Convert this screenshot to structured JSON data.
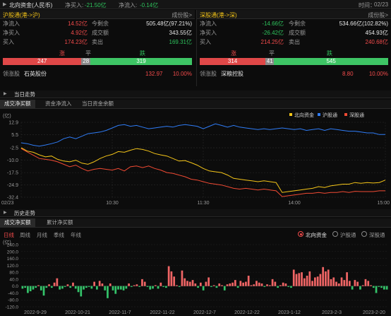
{
  "header": {
    "title": "北向资金(人民币)",
    "net_buy_label": "净买入:",
    "net_buy_value": "-21.50亿",
    "net_inflow_label": "净流入:",
    "net_inflow_value": "-0.14亿",
    "time_label": "时间：",
    "time_value": "02/23"
  },
  "sh": {
    "title": "沪股通(港->沪)",
    "components": "成份股>",
    "inflow_label": "净流入",
    "inflow_value": "14.52亿",
    "remain_label": "今剩余",
    "remain_value": "505.48亿(97.21%)",
    "netbuy_label": "净买入",
    "netbuy_value": "4.92亿",
    "turnover_label": "成交额",
    "turnover_value": "343.55亿",
    "buy_label": "买入",
    "buy_value": "174.23亿",
    "sell_label": "卖出",
    "sell_value": "169.31亿",
    "up_label": "涨",
    "flat_label": "平",
    "down_label": "跌",
    "up_count": 247,
    "flat_count": 28,
    "down_count": 319,
    "leader_label": "领涨股",
    "leader_name": "石英股份",
    "leader_price": "132.97",
    "leader_pct": "10.00%"
  },
  "sz": {
    "title": "深股通(港->深)",
    "components": "成份股>",
    "inflow_label": "净流入",
    "inflow_value": "-14.66亿",
    "remain_label": "今剩余",
    "remain_value": "534.66亿(102.82%)",
    "netbuy_label": "净买入",
    "netbuy_value": "-26.42亿",
    "turnover_label": "成交额",
    "turnover_value": "454.93亿",
    "buy_label": "买入",
    "buy_value": "214.25亿",
    "sell_label": "卖出",
    "sell_value": "240.68亿",
    "up_label": "涨",
    "flat_label": "平",
    "down_label": "跌",
    "up_count": 314,
    "flat_count": 41,
    "down_count": 545,
    "leader_label": "领涨股",
    "leader_name": "深粮控股",
    "leader_price": "8.80",
    "leader_pct": "10.00%"
  },
  "intraday": {
    "section_title": "当日走势",
    "tabs": [
      "成交净买额",
      "资金净流入",
      "当日资金余额"
    ],
    "unit_label": "(亿)",
    "colors": {
      "north": "#f5c518",
      "sh": "#2f7cf6",
      "sz": "#f04a33"
    }
  },
  "history": {
    "section_title": "历史走势",
    "tabs": [
      "成交净买额",
      "累计净买额"
    ],
    "periods": [
      "日线",
      "周线",
      "月线",
      "季线",
      "年线"
    ],
    "radios": [
      "北向资金",
      "沪股通",
      "深股通"
    ],
    "unit_label": "(亿)"
  },
  "chart_data": [
    {
      "type": "line",
      "x_ticks": [
        "02/23",
        "10:30",
        "11:30",
        "14:00",
        "15:00"
      ],
      "y_ticks": [
        "12.9",
        "5.5",
        "-2.5",
        "-10.0",
        "-17.5",
        "-24.9",
        "-32.4"
      ],
      "ylim": [
        -32.4,
        12.9
      ],
      "legend_position": "top-right",
      "series": [
        {
          "name": "北向资金",
          "color": "#f5c518",
          "values": [
            -2.5,
            -4.5,
            -5.2,
            -6.8,
            -8.0,
            -7.5,
            -9.5,
            -10.5,
            -11.0,
            -10.0,
            -11.8,
            -12.5,
            -11.0,
            -9.0,
            -7.5,
            -6.5,
            -4.8,
            -5.2,
            -4.0,
            -3.0,
            -3.5,
            -4.5,
            -6.0,
            -6.8,
            -7.5,
            -9.0,
            -10.5,
            -10.2,
            -11.5,
            -13.0,
            -15.0,
            -16.5,
            -17.0,
            -17.5,
            -19.0,
            -21.0,
            -21.5,
            -22.0,
            -22.5,
            -23.0,
            -22.5,
            -23.0,
            -23.5,
            -29.5,
            -29.0,
            -28.5,
            -28.0,
            -27.5,
            -27.0,
            -26.0,
            -26.5,
            -25.5,
            -25.0,
            -24.5,
            -24.5,
            -23.5,
            -24.0,
            -23.5,
            -23.8,
            -23.5,
            -22.0
          ]
        },
        {
          "name": "沪股通",
          "color": "#2f7cf6",
          "values": [
            0.5,
            0.0,
            -1.0,
            -1.5,
            -0.8,
            0.0,
            1.0,
            3.0,
            4.0,
            3.0,
            4.5,
            6.0,
            6.5,
            7.0,
            8.0,
            9.5,
            11.0,
            11.5,
            10.5,
            11.0,
            10.0,
            9.0,
            9.5,
            10.0,
            10.5,
            10.0,
            11.0,
            11.5,
            11.0,
            10.5,
            9.0,
            10.5,
            12.0,
            11.0,
            10.0,
            11.0,
            10.0,
            9.5,
            9.0,
            8.5,
            9.0,
            8.5,
            9.0,
            9.5,
            9.0,
            8.5,
            9.0,
            8.0,
            8.5,
            9.0,
            8.0,
            9.0,
            8.5,
            8.0,
            7.5,
            7.5,
            7.0,
            6.5,
            6.5,
            5.5,
            5.5
          ]
        },
        {
          "name": "深股通",
          "color": "#f04a33",
          "values": [
            -3.0,
            -5.0,
            -7.0,
            -9.0,
            -9.5,
            -10.0,
            -11.0,
            -12.5,
            -14.0,
            -13.0,
            -15.0,
            -16.5,
            -15.5,
            -15.0,
            -15.5,
            -16.0,
            -15.0,
            -16.5,
            -14.0,
            -13.5,
            -14.5,
            -13.5,
            -15.0,
            -16.0,
            -17.5,
            -18.0,
            -19.0,
            -20.0,
            -21.5,
            -22.0,
            -23.0,
            -24.0,
            -24.5,
            -25.0,
            -26.0,
            -27.0,
            -27.5,
            -27.0,
            -27.5,
            -28.0,
            -27.5,
            -28.0,
            -28.5,
            -32.0,
            -31.5,
            -31.0,
            -30.5,
            -30.0,
            -30.0,
            -29.5,
            -30.0,
            -29.5,
            -29.5,
            -29.0,
            -29.5,
            -28.8,
            -29.0,
            -29.0,
            -29.0,
            -28.5,
            -28.5
          ]
        }
      ]
    },
    {
      "type": "bar",
      "x_ticks": [
        "2022-9-29",
        "2022-10-21",
        "2022-11-7",
        "2022-11-22",
        "2022-12-7",
        "2022-12-22",
        "2023-1-12",
        "2023-2-3",
        "2023-2-20"
      ],
      "y_ticks": [
        "240.0",
        "200.0",
        "160.0",
        "120.0",
        "80.0",
        "40.0",
        "0.0",
        "-40.0",
        "-80.0",
        "-120.0"
      ],
      "ylim": [
        -120,
        240
      ],
      "values": [
        -15,
        -10,
        -40,
        -30,
        -20,
        -10,
        5,
        -25,
        -55,
        -10,
        10,
        -10,
        20,
        45,
        -20,
        -15,
        -5,
        10,
        -10,
        20,
        -15,
        -35,
        -60,
        -20,
        -10,
        -5,
        -15,
        25,
        -20,
        30,
        15,
        -25,
        -70,
        15,
        -25,
        -45,
        -20,
        -20,
        -25,
        -15,
        15,
        -5,
        5,
        10,
        -5,
        40,
        25,
        -5,
        -20,
        -15,
        5,
        -15,
        20,
        -5,
        -10,
        115,
        85,
        55,
        5,
        -5,
        90,
        45,
        30,
        25,
        35,
        15,
        -10,
        20,
        -25,
        25,
        50,
        -5,
        5,
        -10,
        15,
        5,
        -25,
        10,
        15,
        20,
        35,
        -10,
        30,
        20,
        25,
        60,
        5,
        10,
        30,
        20,
        15,
        -5,
        10,
        5,
        40,
        25,
        -10,
        5,
        20,
        15,
        -5,
        -10,
        95,
        70,
        75,
        80,
        45,
        60,
        85,
        30,
        50,
        55,
        70,
        110,
        85,
        95,
        40,
        50,
        25,
        15,
        50,
        35,
        80,
        30,
        -20,
        35,
        25,
        -20,
        5,
        40,
        30,
        5,
        -10,
        -40,
        -5,
        -10,
        -20,
        -20
      ]
    }
  ]
}
